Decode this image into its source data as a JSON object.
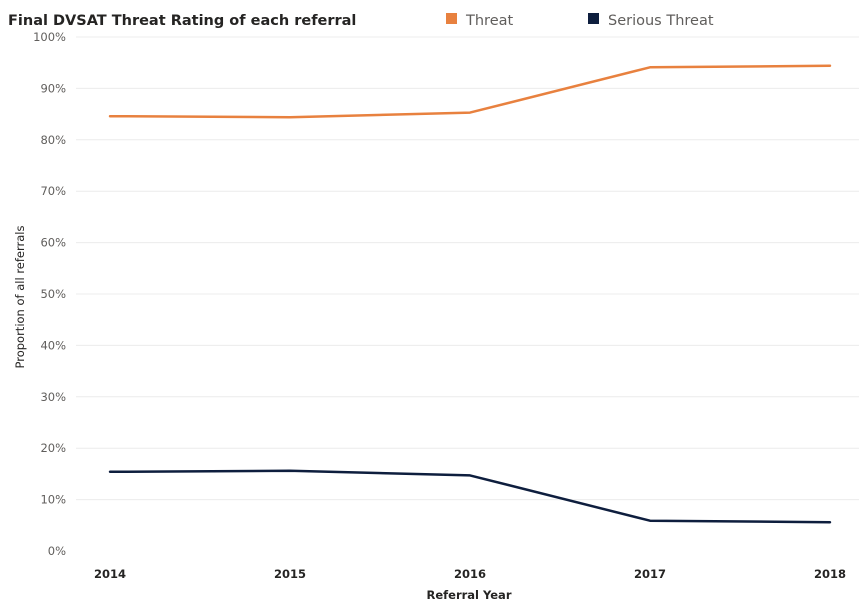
{
  "chart_data": {
    "type": "line",
    "title": "Final DVSAT Threat Rating of each referral",
    "xlabel": "Referral Year",
    "ylabel": "Proportion of all referrals",
    "categories": [
      "2014",
      "2015",
      "2016",
      "2017",
      "2018"
    ],
    "y_ticks": [
      "0%",
      "10%",
      "20%",
      "30%",
      "40%",
      "50%",
      "60%",
      "70%",
      "80%",
      "90%",
      "100%"
    ],
    "ylim": [
      0,
      100
    ],
    "grid": true,
    "legend_position": "top",
    "series": [
      {
        "name": "Threat",
        "color": "#E8813F",
        "values": [
          84.6,
          84.4,
          85.3,
          94.1,
          94.4
        ]
      },
      {
        "name": "Serious Threat",
        "color": "#0E1E3E",
        "values": [
          15.4,
          15.6,
          14.7,
          5.9,
          5.6
        ]
      }
    ]
  }
}
